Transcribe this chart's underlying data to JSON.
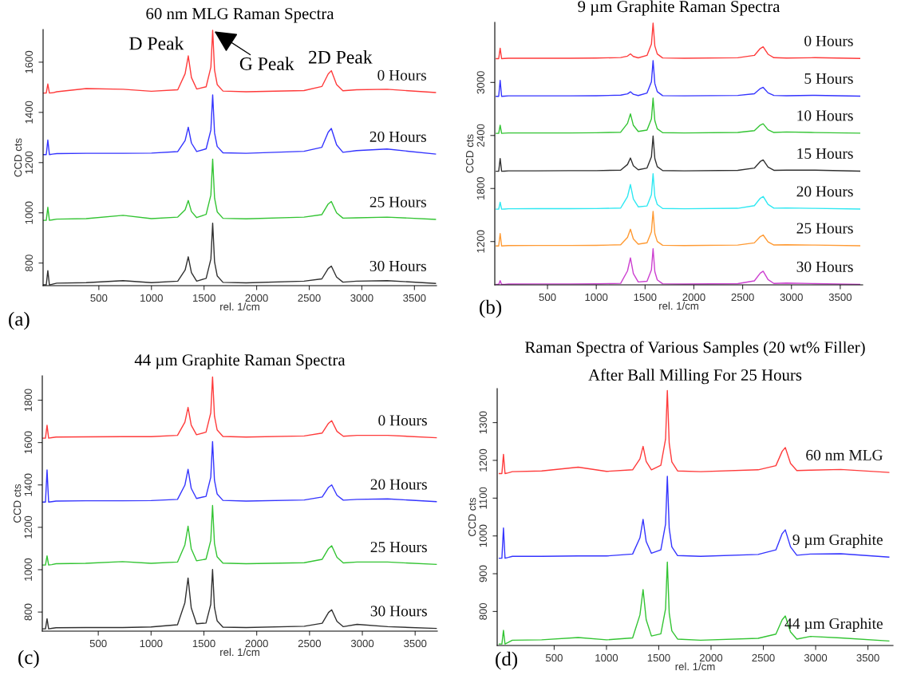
{
  "chart_data": [
    {
      "type": "line",
      "title": "60 nm MLG Raman Spectra",
      "xlabel": "rel. 1/cm",
      "ylabel": "CCD cts",
      "x": [
        -25,
        0,
        15,
        30,
        60,
        100,
        380,
        730,
        1000,
        1250,
        1320,
        1350,
        1380,
        1430,
        1520,
        1565,
        1582,
        1600,
        1625,
        1680,
        1900,
        2450,
        2620,
        2680,
        2710,
        2760,
        2820,
        2950,
        3240,
        3700
      ],
      "xlim": [
        -30,
        3710
      ],
      "xticks": [
        500,
        1000,
        1500,
        2000,
        2500,
        3000,
        3500
      ],
      "ylim": [
        710,
        1730
      ],
      "yticks": [
        800,
        1000,
        1200,
        1400,
        1600
      ],
      "series": [
        {
          "name": "0 Hours",
          "color": "#ff3b3b",
          "values": [
            1477,
            1477,
            1513,
            1477,
            1478,
            1482,
            1495,
            1492,
            1484,
            1490,
            1554,
            1625,
            1539,
            1493,
            1502,
            1580,
            1727,
            1568,
            1511,
            1485,
            1482,
            1487,
            1503,
            1553,
            1566,
            1511,
            1486,
            1490,
            1492,
            1479
          ]
        },
        {
          "name": "20 Hours",
          "color": "#3434ff",
          "values": [
            1232,
            1232,
            1290,
            1232,
            1234,
            1236,
            1237,
            1237,
            1238,
            1244,
            1288,
            1341,
            1278,
            1244,
            1255,
            1330,
            1470,
            1318,
            1264,
            1239,
            1237,
            1245,
            1261,
            1321,
            1336,
            1271,
            1241,
            1248,
            1254,
            1234
          ]
        },
        {
          "name": "25 Hours",
          "color": "#33c433",
          "values": [
            970,
            970,
            1022,
            970,
            972,
            975,
            977,
            990,
            977,
            983,
            1012,
            1049,
            1005,
            981,
            994,
            1071,
            1214,
            1059,
            1004,
            978,
            976,
            983,
            993,
            1035,
            1045,
            1000,
            979,
            980,
            983,
            974
          ]
        },
        {
          "name": "30 Hours",
          "color": "#303030",
          "values": [
            713,
            713,
            770,
            713,
            716,
            720,
            722,
            730,
            722,
            728,
            772,
            825,
            762,
            728,
            739,
            816,
            959,
            804,
            749,
            723,
            721,
            728,
            737,
            778,
            788,
            744,
            724,
            728,
            730,
            719
          ]
        }
      ],
      "annotations": [
        {
          "text": "D Peak",
          "x": 1350,
          "y": 1625
        },
        {
          "text": "G Peak",
          "x": 1582,
          "y": 1727
        },
        {
          "text": "2D Peak",
          "x": 2710,
          "y": 1566
        },
        "(a)"
      ]
    },
    {
      "type": "line",
      "title": "9 µm Graphite Raman Spectra",
      "xlabel": "rel. 1/cm",
      "ylabel": "CCD cts",
      "x": [
        -25,
        0,
        15,
        30,
        60,
        100,
        380,
        730,
        1000,
        1250,
        1320,
        1350,
        1380,
        1430,
        1520,
        1565,
        1582,
        1600,
        1625,
        1680,
        1900,
        2450,
        2620,
        2680,
        2710,
        2760,
        2820,
        2950,
        3240,
        3700
      ],
      "xlim": [
        -40,
        3730
      ],
      "xticks": [
        500,
        1000,
        1500,
        2000,
        2500,
        3000,
        3500
      ],
      "ylim": [
        710,
        3680
      ],
      "yticks": [
        1200,
        1800,
        2400,
        3000
      ],
      "series": [
        {
          "name": "0 Hours",
          "color": "#ff3b3b",
          "values": [
            3269,
            3269,
            3387,
            3269,
            3271,
            3274,
            3274,
            3274,
            3276,
            3282,
            3298,
            3323,
            3294,
            3278,
            3306,
            3433,
            3671,
            3413,
            3322,
            3277,
            3274,
            3279,
            3306,
            3384,
            3403,
            3319,
            3280,
            3276,
            3280,
            3271
          ]
        },
        {
          "name": "5 Hours",
          "color": "#3434ff",
          "values": [
            2843,
            2843,
            3023,
            2843,
            2845,
            2848,
            2848,
            2848,
            2850,
            2856,
            2871,
            2894,
            2866,
            2852,
            2880,
            3008,
            3248,
            2988,
            2896,
            2851,
            2848,
            2853,
            2872,
            2930,
            2945,
            2882,
            2853,
            2850,
            2854,
            2845
          ]
        },
        {
          "name": "10 Hours",
          "color": "#33c433",
          "values": [
            2424,
            2424,
            2516,
            2424,
            2426,
            2429,
            2429,
            2429,
            2431,
            2437,
            2537,
            2645,
            2515,
            2446,
            2461,
            2587,
            2823,
            2567,
            2476,
            2432,
            2429,
            2434,
            2455,
            2517,
            2532,
            2465,
            2434,
            2440,
            2433,
            2426
          ]
        },
        {
          "name": "15 Hours",
          "color": "#303030",
          "values": [
            1995,
            1995,
            2139,
            1995,
            1997,
            2000,
            2000,
            2002,
            2002,
            2008,
            2072,
            2145,
            2058,
            2012,
            2032,
            2158,
            2394,
            2138,
            2047,
            2003,
            2000,
            2005,
            2031,
            2105,
            2123,
            2043,
            2006,
            2008,
            2008,
            1997
          ]
        },
        {
          "name": "20 Hours",
          "color": "#2ee8f2",
          "values": [
            1566,
            1566,
            1645,
            1566,
            1568,
            1571,
            1572,
            1572,
            1573,
            1579,
            1708,
            1845,
            1681,
            1593,
            1603,
            1730,
            1968,
            1710,
            1619,
            1574,
            1571,
            1576,
            1606,
            1689,
            1710,
            1620,
            1578,
            1580,
            1575,
            1568
          ]
        },
        {
          "name": "25 Hours",
          "color": "#ff9a33",
          "values": [
            1150,
            1150,
            1290,
            1150,
            1152,
            1155,
            1156,
            1156,
            1157,
            1163,
            1247,
            1339,
            1229,
            1170,
            1186,
            1310,
            1542,
            1290,
            1201,
            1158,
            1155,
            1160,
            1185,
            1256,
            1274,
            1197,
            1161,
            1163,
            1160,
            1152
          ]
        },
        {
          "name": "30 Hours",
          "color": "#cc3fd0",
          "values": [
            714,
            714,
            758,
            714,
            716,
            719,
            720,
            720,
            721,
            727,
            868,
            1016,
            838,
            743,
            751,
            879,
            1119,
            859,
            767,
            722,
            719,
            724,
            755,
            842,
            864,
            770,
            726,
            730,
            724,
            716
          ]
        }
      ],
      "annotations": [
        "(b)"
      ]
    },
    {
      "type": "line",
      "title": "44 µm Graphite Raman Spectra",
      "xlabel": "rel. 1/cm",
      "ylabel": "CCD cts",
      "x": [
        -25,
        0,
        15,
        30,
        60,
        100,
        380,
        730,
        1000,
        1250,
        1320,
        1350,
        1380,
        1430,
        1520,
        1565,
        1582,
        1600,
        1625,
        1680,
        1900,
        2450,
        2620,
        2680,
        2710,
        2760,
        2820,
        2950,
        3240,
        3700
      ],
      "xlim": [
        -30,
        3710
      ],
      "xticks": [
        500,
        1000,
        1500,
        2000,
        2500,
        3000,
        3500
      ],
      "ylim": [
        710,
        1915
      ],
      "yticks": [
        800,
        1000,
        1200,
        1400,
        1600,
        1800
      ],
      "series": [
        {
          "name": "0 Hours",
          "color": "#ff3b3b",
          "values": [
            1621,
            1621,
            1682,
            1621,
            1623,
            1626,
            1627,
            1628,
            1628,
            1634,
            1696,
            1766,
            1682,
            1637,
            1649,
            1740,
            1910,
            1725,
            1660,
            1629,
            1626,
            1631,
            1645,
            1691,
            1703,
            1653,
            1630,
            1634,
            1634,
            1623
          ]
        },
        {
          "name": "20 Hours",
          "color": "#3434ff",
          "values": [
            1319,
            1319,
            1471,
            1319,
            1321,
            1324,
            1325,
            1325,
            1326,
            1332,
            1399,
            1474,
            1384,
            1336,
            1346,
            1436,
            1605,
            1422,
            1358,
            1327,
            1324,
            1329,
            1343,
            1389,
            1400,
            1351,
            1328,
            1332,
            1334,
            1321
          ]
        },
        {
          "name": "25 Hours",
          "color": "#33c433",
          "values": [
            1022,
            1022,
            1065,
            1022,
            1024,
            1028,
            1030,
            1038,
            1030,
            1036,
            1117,
            1205,
            1099,
            1042,
            1050,
            1138,
            1303,
            1124,
            1061,
            1031,
            1028,
            1033,
            1049,
            1100,
            1113,
            1058,
            1032,
            1036,
            1036,
            1025
          ]
        },
        {
          "name": "30 Hours",
          "color": "#303030",
          "values": [
            721,
            721,
            769,
            721,
            723,
            726,
            727,
            727,
            730,
            740,
            844,
            961,
            820,
            745,
            748,
            836,
            1001,
            822,
            759,
            729,
            727,
            733,
            747,
            798,
            811,
            756,
            731,
            742,
            731,
            723
          ]
        }
      ],
      "annotations": [
        "(c)"
      ]
    },
    {
      "type": "line",
      "title": "Raman Spectra of Various Samples (20 wt% Filler)",
      "subtitle": "After Ball Milling For 25 Hours",
      "xlabel": "rel. 1/cm",
      "ylabel": "CCD cts",
      "x": [
        -25,
        0,
        15,
        30,
        60,
        100,
        380,
        730,
        1000,
        1250,
        1320,
        1350,
        1380,
        1430,
        1520,
        1565,
        1582,
        1600,
        1625,
        1680,
        1900,
        2450,
        2620,
        2680,
        2710,
        2760,
        2820,
        2950,
        3240,
        3700
      ],
      "xlim": [
        -45,
        3740
      ],
      "xticks": [
        500,
        1000,
        1500,
        2000,
        2500,
        3000,
        3500
      ],
      "ylim": [
        710,
        1390
      ],
      "yticks": [
        800,
        900,
        1000,
        1100,
        1200,
        1300
      ],
      "series": [
        {
          "name": "60 nm MLG",
          "color": "#ff3b3b",
          "values": [
            1165,
            1165,
            1216,
            1165,
            1167,
            1170,
            1172,
            1182,
            1171,
            1175,
            1204,
            1237,
            1197,
            1175,
            1187,
            1256,
            1385,
            1245,
            1196,
            1172,
            1170,
            1175,
            1186,
            1224,
            1234,
            1192,
            1173,
            1174,
            1176,
            1168
          ]
        },
        {
          "name": "9 µm Graphite",
          "color": "#3434ff",
          "values": [
            941,
            941,
            1021,
            941,
            943,
            946,
            946,
            947,
            947,
            952,
            995,
            1044,
            985,
            954,
            963,
            1031,
            1158,
            1020,
            971,
            948,
            946,
            951,
            963,
            1006,
            1016,
            971,
            949,
            952,
            953,
            944
          ]
        },
        {
          "name": "44 µm Graphite",
          "color": "#33c433",
          "values": [
            714,
            714,
            750,
            714,
            718,
            724,
            725,
            731,
            725,
            730,
            791,
            858,
            778,
            735,
            741,
            807,
            931,
            796,
            749,
            727,
            724,
            729,
            740,
            778,
            788,
            746,
            727,
            734,
            730,
            722
          ]
        }
      ],
      "annotations": [
        "(d)"
      ]
    }
  ]
}
